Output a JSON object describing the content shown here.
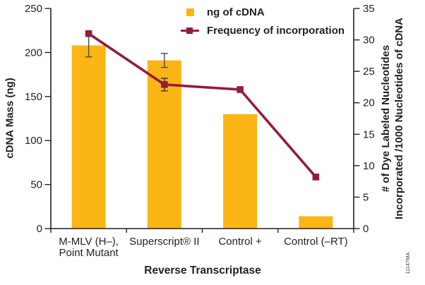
{
  "figure": {
    "watermark": "11147MA",
    "background": "#ffffff",
    "text_color": "#231F20"
  },
  "legend": {
    "position": "top-center",
    "items": [
      {
        "label": "ng of cDNA",
        "type": "bar-swatch",
        "color": "#FBB515"
      },
      {
        "label": "Frequency of incorporation",
        "type": "line-marker",
        "color": "#951B3F"
      }
    ]
  },
  "chart_data": {
    "type": "combo",
    "title": "",
    "grid": false,
    "categories": [
      "M-MLV (H–), Point Mutant",
      "Superscript® II",
      "Control +",
      "Control (–RT)"
    ],
    "category_label_lines": [
      [
        "M-MLV (H–),",
        "Point Mutant"
      ],
      [
        "Superscript® II"
      ],
      [
        "Control +"
      ],
      [
        "Control (–RT)"
      ]
    ],
    "series": [
      {
        "name": "ng of cDNA",
        "type": "bar",
        "axis": "left",
        "color": "#FBB515",
        "values": [
          208,
          191,
          130,
          14
        ],
        "error": [
          13,
          8,
          null,
          null
        ]
      },
      {
        "name": "Frequency of incorporation",
        "type": "line",
        "axis": "right",
        "color": "#951B3F",
        "values": [
          31,
          22.9,
          22.1,
          8.2
        ],
        "error": [
          null,
          1,
          null,
          null
        ]
      }
    ],
    "left_axis": {
      "label": "cDNA Mass (ng)",
      "min": 0,
      "max": 250,
      "ticks": [
        0,
        50,
        100,
        150,
        200,
        250
      ]
    },
    "right_axis": {
      "label": "# of Dye Labeled Nucleotides Incorporated /1000 Nucleotides of cDNA",
      "label_line1": "# of Dye Labeled Nucleotides",
      "label_line2": "Incorporated /1000 Nucleotides of cDNA",
      "min": 0,
      "max": 35,
      "ticks": [
        0,
        5,
        10,
        15,
        20,
        25,
        30,
        35
      ]
    },
    "x_axis": {
      "label": "Reverse Transcriptase"
    },
    "style": {
      "axis_color": "#231F20",
      "error_bar_color": "#4D4D4D"
    }
  }
}
